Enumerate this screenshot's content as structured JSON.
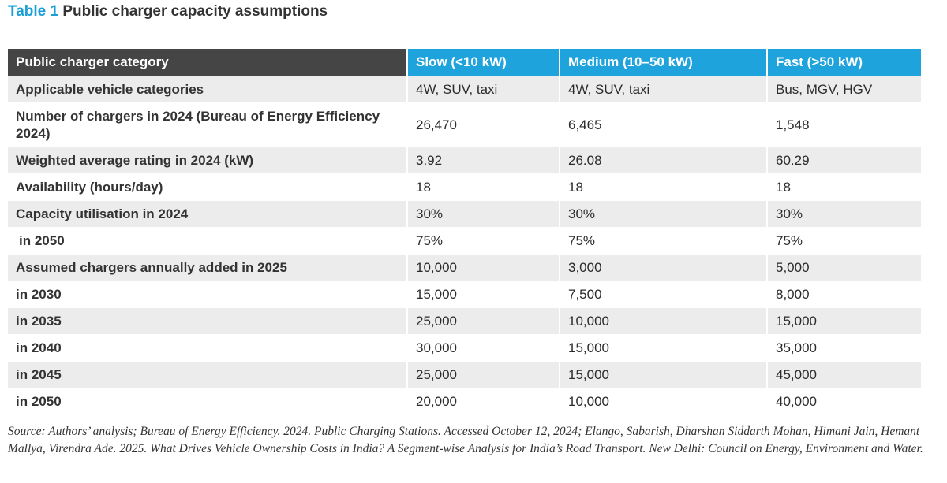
{
  "title": {
    "label": "Table 1",
    "text": "Public charger capacity assumptions"
  },
  "table": {
    "headers": [
      "Public charger category",
      "Slow (<10 kW)",
      "Medium (10–50 kW)",
      "Fast (>50 kW)"
    ],
    "rows": [
      [
        "Applicable vehicle categories",
        "4W, SUV, taxi",
        "4W, SUV, taxi",
        "Bus, MGV, HGV"
      ],
      [
        "Number of chargers in 2024 (Bureau of Energy Efficiency 2024)",
        "26,470",
        "6,465",
        "1,548"
      ],
      [
        "Weighted average rating in 2024 (kW)",
        "3.92",
        "26.08",
        "60.29"
      ],
      [
        "Availability (hours/day)",
        "18",
        "18",
        "18"
      ],
      [
        "Capacity utilisation in 2024",
        "30%",
        "30%",
        "30%"
      ],
      [
        "in 2050",
        "75%",
        "75%",
        "75%"
      ],
      [
        "Assumed chargers annually added in 2025",
        "10,000",
        "3,000",
        "5,000"
      ],
      [
        "in 2030",
        "15,000",
        "7,500",
        "8,000"
      ],
      [
        "in 2035",
        "25,000",
        "10,000",
        "15,000"
      ],
      [
        "in 2040",
        "30,000",
        "15,000",
        "35,000"
      ],
      [
        "in 2045",
        "25,000",
        "15,000",
        "45,000"
      ],
      [
        "in 2050",
        "20,000",
        "10,000",
        "40,000"
      ]
    ]
  },
  "source": "Source: Authors’ analysis; Bureau of Energy Efficiency. 2024. Public Charging Stations. Accessed October 12, 2024; Elango, Sabarish, Dharshan Siddarth Mohan, Himani Jain, Hemant Mallya, Virendra Ade. 2025. What Drives Vehicle Ownership Costs in India? A Segment-wise Analysis for India’s Road Transport. New Delhi: Council on Energy, Environment and Water."
}
